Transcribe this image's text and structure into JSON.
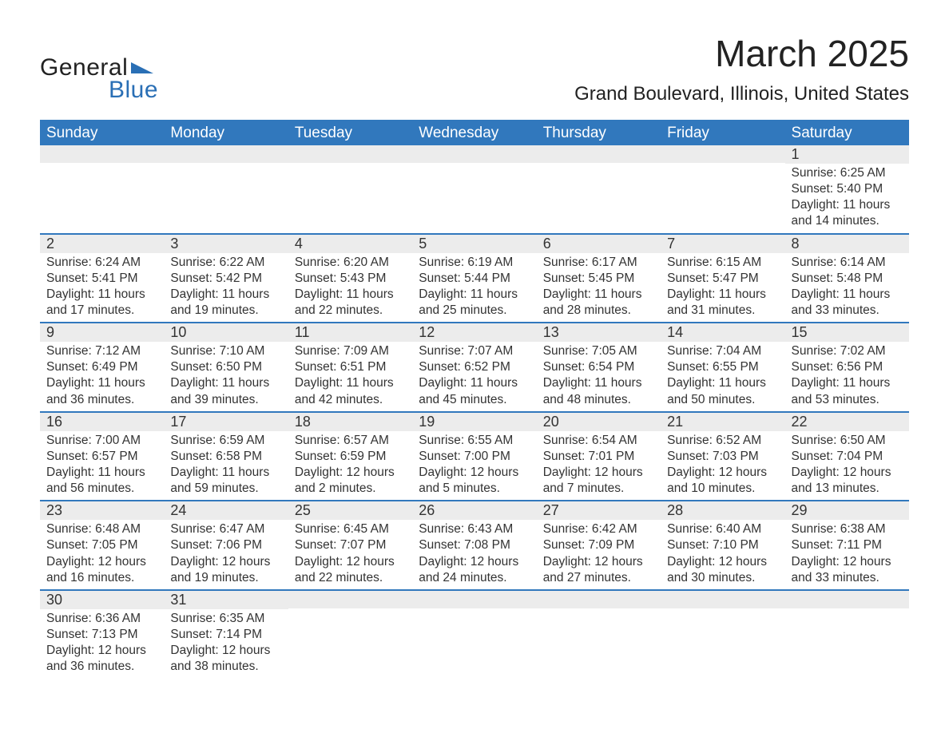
{
  "logo": {
    "line1": "General",
    "line2": "Blue",
    "flag_color": "#2a6fb5"
  },
  "title": "March 2025",
  "location": "Grand Boulevard, Illinois, United States",
  "colors": {
    "header_bg": "#3178bd",
    "header_text": "#ffffff",
    "daynum_bg": "#ececec",
    "row_divider": "#3178bd",
    "text": "#333333",
    "body_bg": "#ffffff"
  },
  "fonts": {
    "title_size_pt": 34,
    "location_size_pt": 18,
    "header_size_pt": 14,
    "body_size_pt": 12
  },
  "dayHeaders": [
    "Sunday",
    "Monday",
    "Tuesday",
    "Wednesday",
    "Thursday",
    "Friday",
    "Saturday"
  ],
  "weeks": [
    [
      {
        "num": "",
        "sunrise": "",
        "sunset": "",
        "daylight": ""
      },
      {
        "num": "",
        "sunrise": "",
        "sunset": "",
        "daylight": ""
      },
      {
        "num": "",
        "sunrise": "",
        "sunset": "",
        "daylight": ""
      },
      {
        "num": "",
        "sunrise": "",
        "sunset": "",
        "daylight": ""
      },
      {
        "num": "",
        "sunrise": "",
        "sunset": "",
        "daylight": ""
      },
      {
        "num": "",
        "sunrise": "",
        "sunset": "",
        "daylight": ""
      },
      {
        "num": "1",
        "sunrise": "Sunrise: 6:25 AM",
        "sunset": "Sunset: 5:40 PM",
        "daylight": "Daylight: 11 hours and 14 minutes."
      }
    ],
    [
      {
        "num": "2",
        "sunrise": "Sunrise: 6:24 AM",
        "sunset": "Sunset: 5:41 PM",
        "daylight": "Daylight: 11 hours and 17 minutes."
      },
      {
        "num": "3",
        "sunrise": "Sunrise: 6:22 AM",
        "sunset": "Sunset: 5:42 PM",
        "daylight": "Daylight: 11 hours and 19 minutes."
      },
      {
        "num": "4",
        "sunrise": "Sunrise: 6:20 AM",
        "sunset": "Sunset: 5:43 PM",
        "daylight": "Daylight: 11 hours and 22 minutes."
      },
      {
        "num": "5",
        "sunrise": "Sunrise: 6:19 AM",
        "sunset": "Sunset: 5:44 PM",
        "daylight": "Daylight: 11 hours and 25 minutes."
      },
      {
        "num": "6",
        "sunrise": "Sunrise: 6:17 AM",
        "sunset": "Sunset: 5:45 PM",
        "daylight": "Daylight: 11 hours and 28 minutes."
      },
      {
        "num": "7",
        "sunrise": "Sunrise: 6:15 AM",
        "sunset": "Sunset: 5:47 PM",
        "daylight": "Daylight: 11 hours and 31 minutes."
      },
      {
        "num": "8",
        "sunrise": "Sunrise: 6:14 AM",
        "sunset": "Sunset: 5:48 PM",
        "daylight": "Daylight: 11 hours and 33 minutes."
      }
    ],
    [
      {
        "num": "9",
        "sunrise": "Sunrise: 7:12 AM",
        "sunset": "Sunset: 6:49 PM",
        "daylight": "Daylight: 11 hours and 36 minutes."
      },
      {
        "num": "10",
        "sunrise": "Sunrise: 7:10 AM",
        "sunset": "Sunset: 6:50 PM",
        "daylight": "Daylight: 11 hours and 39 minutes."
      },
      {
        "num": "11",
        "sunrise": "Sunrise: 7:09 AM",
        "sunset": "Sunset: 6:51 PM",
        "daylight": "Daylight: 11 hours and 42 minutes."
      },
      {
        "num": "12",
        "sunrise": "Sunrise: 7:07 AM",
        "sunset": "Sunset: 6:52 PM",
        "daylight": "Daylight: 11 hours and 45 minutes."
      },
      {
        "num": "13",
        "sunrise": "Sunrise: 7:05 AM",
        "sunset": "Sunset: 6:54 PM",
        "daylight": "Daylight: 11 hours and 48 minutes."
      },
      {
        "num": "14",
        "sunrise": "Sunrise: 7:04 AM",
        "sunset": "Sunset: 6:55 PM",
        "daylight": "Daylight: 11 hours and 50 minutes."
      },
      {
        "num": "15",
        "sunrise": "Sunrise: 7:02 AM",
        "sunset": "Sunset: 6:56 PM",
        "daylight": "Daylight: 11 hours and 53 minutes."
      }
    ],
    [
      {
        "num": "16",
        "sunrise": "Sunrise: 7:00 AM",
        "sunset": "Sunset: 6:57 PM",
        "daylight": "Daylight: 11 hours and 56 minutes."
      },
      {
        "num": "17",
        "sunrise": "Sunrise: 6:59 AM",
        "sunset": "Sunset: 6:58 PM",
        "daylight": "Daylight: 11 hours and 59 minutes."
      },
      {
        "num": "18",
        "sunrise": "Sunrise: 6:57 AM",
        "sunset": "Sunset: 6:59 PM",
        "daylight": "Daylight: 12 hours and 2 minutes."
      },
      {
        "num": "19",
        "sunrise": "Sunrise: 6:55 AM",
        "sunset": "Sunset: 7:00 PM",
        "daylight": "Daylight: 12 hours and 5 minutes."
      },
      {
        "num": "20",
        "sunrise": "Sunrise: 6:54 AM",
        "sunset": "Sunset: 7:01 PM",
        "daylight": "Daylight: 12 hours and 7 minutes."
      },
      {
        "num": "21",
        "sunrise": "Sunrise: 6:52 AM",
        "sunset": "Sunset: 7:03 PM",
        "daylight": "Daylight: 12 hours and 10 minutes."
      },
      {
        "num": "22",
        "sunrise": "Sunrise: 6:50 AM",
        "sunset": "Sunset: 7:04 PM",
        "daylight": "Daylight: 12 hours and 13 minutes."
      }
    ],
    [
      {
        "num": "23",
        "sunrise": "Sunrise: 6:48 AM",
        "sunset": "Sunset: 7:05 PM",
        "daylight": "Daylight: 12 hours and 16 minutes."
      },
      {
        "num": "24",
        "sunrise": "Sunrise: 6:47 AM",
        "sunset": "Sunset: 7:06 PM",
        "daylight": "Daylight: 12 hours and 19 minutes."
      },
      {
        "num": "25",
        "sunrise": "Sunrise: 6:45 AM",
        "sunset": "Sunset: 7:07 PM",
        "daylight": "Daylight: 12 hours and 22 minutes."
      },
      {
        "num": "26",
        "sunrise": "Sunrise: 6:43 AM",
        "sunset": "Sunset: 7:08 PM",
        "daylight": "Daylight: 12 hours and 24 minutes."
      },
      {
        "num": "27",
        "sunrise": "Sunrise: 6:42 AM",
        "sunset": "Sunset: 7:09 PM",
        "daylight": "Daylight: 12 hours and 27 minutes."
      },
      {
        "num": "28",
        "sunrise": "Sunrise: 6:40 AM",
        "sunset": "Sunset: 7:10 PM",
        "daylight": "Daylight: 12 hours and 30 minutes."
      },
      {
        "num": "29",
        "sunrise": "Sunrise: 6:38 AM",
        "sunset": "Sunset: 7:11 PM",
        "daylight": "Daylight: 12 hours and 33 minutes."
      }
    ],
    [
      {
        "num": "30",
        "sunrise": "Sunrise: 6:36 AM",
        "sunset": "Sunset: 7:13 PM",
        "daylight": "Daylight: 12 hours and 36 minutes."
      },
      {
        "num": "31",
        "sunrise": "Sunrise: 6:35 AM",
        "sunset": "Sunset: 7:14 PM",
        "daylight": "Daylight: 12 hours and 38 minutes."
      },
      {
        "num": "",
        "sunrise": "",
        "sunset": "",
        "daylight": ""
      },
      {
        "num": "",
        "sunrise": "",
        "sunset": "",
        "daylight": ""
      },
      {
        "num": "",
        "sunrise": "",
        "sunset": "",
        "daylight": ""
      },
      {
        "num": "",
        "sunrise": "",
        "sunset": "",
        "daylight": ""
      },
      {
        "num": "",
        "sunrise": "",
        "sunset": "",
        "daylight": ""
      }
    ]
  ]
}
